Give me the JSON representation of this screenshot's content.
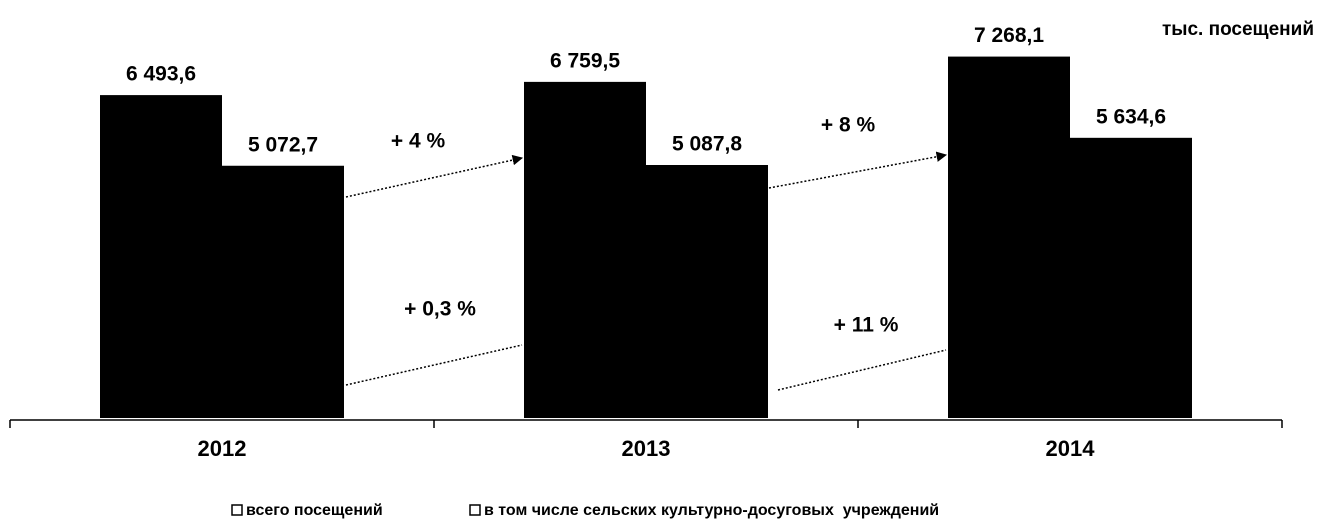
{
  "chart_data": {
    "type": "bar",
    "unit_label": "тыс. посещений",
    "categories": [
      "2012",
      "2013",
      "2014"
    ],
    "series": [
      {
        "name": "всего посещений",
        "color": "#000000",
        "values": [
          6493.6,
          6759.5,
          7268.1
        ],
        "value_labels": [
          "6 493,6",
          "6 759,5",
          "7 268,1"
        ]
      },
      {
        "name": "в том числе сельских культурно-досуговых  учреждений",
        "color": "#000000",
        "values": [
          5072.7,
          5087.8,
          5634.6
        ],
        "value_labels": [
          "5 072,7",
          "5 087,8",
          "5 634,6"
        ]
      }
    ],
    "annotations": [
      "+ 4 %",
      "+ 0,3 %",
      "+ 8 %",
      "+ 11 %"
    ],
    "ylim": [
      0,
      7300
    ],
    "legend": "bottom"
  }
}
